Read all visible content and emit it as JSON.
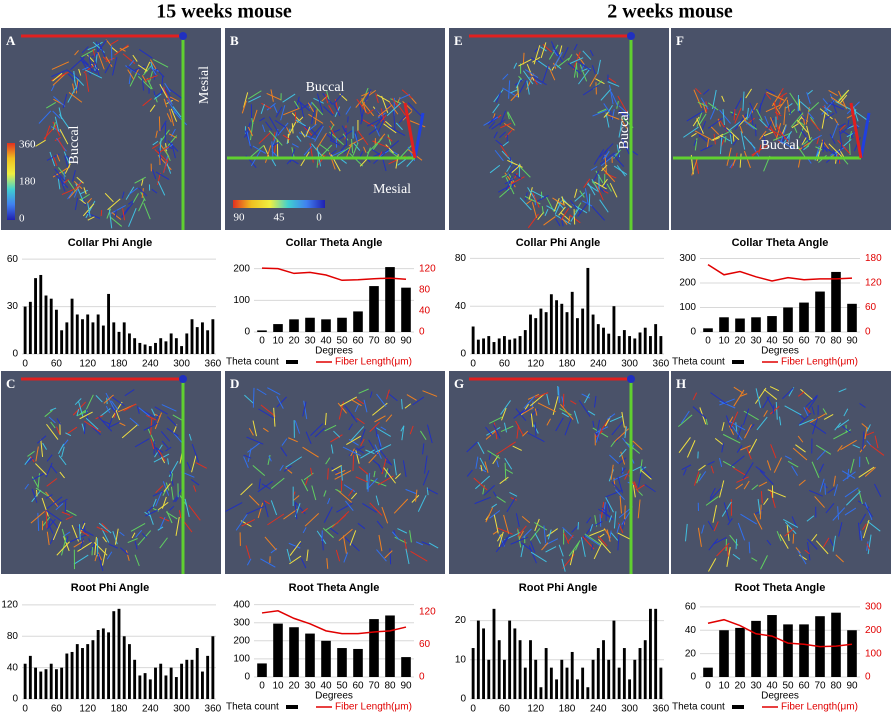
{
  "headings": [
    "15 weeks mouse",
    "2 weeks mouse"
  ],
  "panels": [
    {
      "letter": "A",
      "notes": [
        "Buccal",
        "Mesial"
      ],
      "scale": [
        360,
        180,
        0
      ]
    },
    {
      "letter": "B",
      "notes": [
        "Buccal",
        "Mesial"
      ],
      "scale": [
        90,
        45,
        0
      ]
    },
    {
      "letter": "C"
    },
    {
      "letter": "D"
    },
    {
      "letter": "E",
      "notes": [
        "Buccal"
      ]
    },
    {
      "letter": "F",
      "notes": [
        "Buccal"
      ]
    },
    {
      "letter": "G"
    },
    {
      "letter": "H"
    }
  ],
  "chart_data": [
    {
      "type": "bar",
      "title": "Collar Phi Angle",
      "x": [
        0,
        10,
        20,
        30,
        40,
        50,
        60,
        70,
        80,
        90,
        100,
        110,
        120,
        130,
        140,
        150,
        160,
        170,
        180,
        190,
        200,
        210,
        220,
        230,
        240,
        250,
        260,
        270,
        280,
        290,
        300,
        310,
        320,
        330,
        340,
        350,
        360
      ],
      "values": [
        30,
        33,
        48,
        50,
        37,
        35,
        28,
        15,
        20,
        35,
        25,
        22,
        25,
        20,
        25,
        18,
        38,
        20,
        14,
        20,
        13,
        10,
        7,
        6,
        5,
        7,
        10,
        8,
        13,
        10,
        5,
        13,
        22,
        17,
        20,
        15,
        22
      ],
      "color": "#000000",
      "xlim": [
        -6,
        366
      ],
      "xticks": [
        0,
        60,
        120,
        180,
        240,
        300,
        360
      ],
      "ylim": [
        0,
        62
      ],
      "yticks": [
        0,
        30,
        60
      ],
      "grid": true
    },
    {
      "type": "bar_line",
      "title": "Collar Theta Angle",
      "categories": [
        0,
        10,
        20,
        30,
        40,
        50,
        60,
        70,
        80,
        90
      ],
      "xlabel": "Degrees",
      "series": [
        {
          "name": "Theta count",
          "color": "#000000",
          "values": [
            5,
            25,
            40,
            45,
            40,
            45,
            65,
            145,
            205,
            140
          ]
        },
        {
          "name": "Fiber Length(μm)",
          "color": "#e00000",
          "axis": "y2",
          "values": [
            121,
            120,
            111,
            113,
            108,
            98,
            99,
            101,
            102,
            100
          ]
        }
      ],
      "ylim": [
        0,
        240
      ],
      "yticks": [
        0,
        100,
        200
      ],
      "y2lim": [
        0,
        144
      ],
      "y2ticks": [
        0,
        40,
        80,
        120
      ],
      "grid": true
    },
    {
      "type": "bar",
      "title": "Collar Phi Angle",
      "x": [
        0,
        10,
        20,
        30,
        40,
        50,
        60,
        70,
        80,
        90,
        100,
        110,
        120,
        130,
        140,
        150,
        160,
        170,
        180,
        190,
        200,
        210,
        220,
        230,
        240,
        250,
        260,
        270,
        280,
        290,
        300,
        310,
        320,
        330,
        340,
        350,
        360
      ],
      "values": [
        23,
        12,
        13,
        15,
        10,
        13,
        15,
        12,
        13,
        15,
        20,
        33,
        30,
        38,
        35,
        50,
        45,
        42,
        35,
        52,
        30,
        38,
        72,
        33,
        25,
        22,
        17,
        40,
        15,
        20,
        15,
        13,
        18,
        22,
        15,
        25,
        15
      ],
      "color": "#000000",
      "xlim": [
        -6,
        366
      ],
      "xticks": [
        0,
        60,
        120,
        180,
        240,
        300,
        360
      ],
      "ylim": [
        0,
        82
      ],
      "yticks": [
        0,
        40,
        80
      ],
      "grid": true
    },
    {
      "type": "bar_line",
      "title": "Collar Theta Angle",
      "categories": [
        0,
        10,
        20,
        30,
        40,
        50,
        60,
        70,
        80,
        90
      ],
      "xlabel": "Degrees",
      "series": [
        {
          "name": "Theta count",
          "color": "#000000",
          "values": [
            15,
            60,
            55,
            60,
            65,
            100,
            120,
            165,
            245,
            115
          ]
        },
        {
          "name": "Fiber Length(μm)",
          "color": "#e00000",
          "axis": "y2",
          "values": [
            165,
            140,
            148,
            135,
            125,
            133,
            128,
            130,
            130,
            132
          ]
        }
      ],
      "ylim": [
        0,
        310
      ],
      "yticks": [
        0,
        100,
        200,
        300
      ],
      "y2lim": [
        0,
        186
      ],
      "y2ticks": [
        0,
        60,
        120,
        180
      ],
      "grid": true
    },
    {
      "type": "bar",
      "title": "Root Phi Angle",
      "x": [
        0,
        10,
        20,
        30,
        40,
        50,
        60,
        70,
        80,
        90,
        100,
        110,
        120,
        130,
        140,
        150,
        160,
        170,
        180,
        190,
        200,
        210,
        220,
        230,
        240,
        250,
        260,
        270,
        280,
        290,
        300,
        310,
        320,
        330,
        340,
        350,
        360
      ],
      "values": [
        45,
        55,
        40,
        35,
        38,
        45,
        38,
        40,
        58,
        60,
        70,
        65,
        70,
        75,
        88,
        90,
        85,
        112,
        115,
        80,
        70,
        50,
        30,
        33,
        25,
        40,
        45,
        30,
        40,
        28,
        45,
        50,
        50,
        65,
        35,
        55,
        80
      ],
      "color": "#000000",
      "xlim": [
        -6,
        366
      ],
      "xticks": [
        0,
        60,
        120,
        180,
        240,
        300,
        360
      ],
      "ylim": [
        0,
        125
      ],
      "yticks": [
        0,
        40,
        80,
        120
      ],
      "grid": true
    },
    {
      "type": "bar_line",
      "title": "Root Theta Angle",
      "categories": [
        0,
        10,
        20,
        30,
        40,
        50,
        60,
        70,
        80,
        90
      ],
      "xlabel": "Degrees",
      "series": [
        {
          "name": "Theta count",
          "color": "#000000",
          "values": [
            75,
            295,
            275,
            240,
            200,
            160,
            155,
            320,
            340,
            110
          ]
        },
        {
          "name": "Fiber Length(μm)",
          "color": "#e00000",
          "axis": "y2",
          "values": [
            118,
            122,
            108,
            98,
            85,
            80,
            80,
            83,
            85,
            92
          ]
        }
      ],
      "ylim": [
        0,
        420
      ],
      "yticks": [
        0,
        100,
        200,
        300,
        400
      ],
      "y2lim": [
        0,
        140
      ],
      "y2ticks": [
        0,
        60,
        120
      ],
      "grid": true
    },
    {
      "type": "bar",
      "title": "Root Phi Angle",
      "x": [
        0,
        10,
        20,
        30,
        40,
        50,
        60,
        70,
        80,
        90,
        100,
        110,
        120,
        130,
        140,
        150,
        160,
        170,
        180,
        190,
        200,
        210,
        220,
        230,
        240,
        250,
        260,
        270,
        280,
        290,
        300,
        310,
        320,
        330,
        340,
        350,
        360
      ],
      "values": [
        13,
        20,
        18,
        10,
        23,
        15,
        10,
        20,
        18,
        15,
        8,
        15,
        10,
        3,
        13,
        8,
        5,
        10,
        8,
        12,
        5,
        8,
        3,
        10,
        13,
        15,
        10,
        20,
        8,
        13,
        5,
        10,
        13,
        15,
        23,
        23,
        8
      ],
      "color": "#000000",
      "xlim": [
        -6,
        366
      ],
      "xticks": [
        0,
        60,
        120,
        180,
        240,
        300,
        360
      ],
      "ylim": [
        0,
        25
      ],
      "yticks": [
        0,
        10,
        20
      ],
      "grid": true
    },
    {
      "type": "bar_line",
      "title": "Root Theta Angle",
      "categories": [
        0,
        10,
        20,
        30,
        40,
        50,
        60,
        70,
        80,
        90
      ],
      "xlabel": "Degrees",
      "series": [
        {
          "name": "Theta count",
          "color": "#000000",
          "values": [
            8,
            40,
            42,
            48,
            53,
            45,
            45,
            52,
            55,
            40
          ]
        },
        {
          "name": "Fiber Length(μm)",
          "color": "#e00000",
          "axis": "y2",
          "values": [
            230,
            245,
            220,
            185,
            175,
            145,
            140,
            130,
            132,
            140
          ]
        }
      ],
      "ylim": [
        0,
        65
      ],
      "yticks": [
        0,
        20,
        40,
        60
      ],
      "y2lim": [
        0,
        325
      ],
      "y2ticks": [
        0,
        100,
        200,
        300
      ],
      "grid": true
    }
  ]
}
